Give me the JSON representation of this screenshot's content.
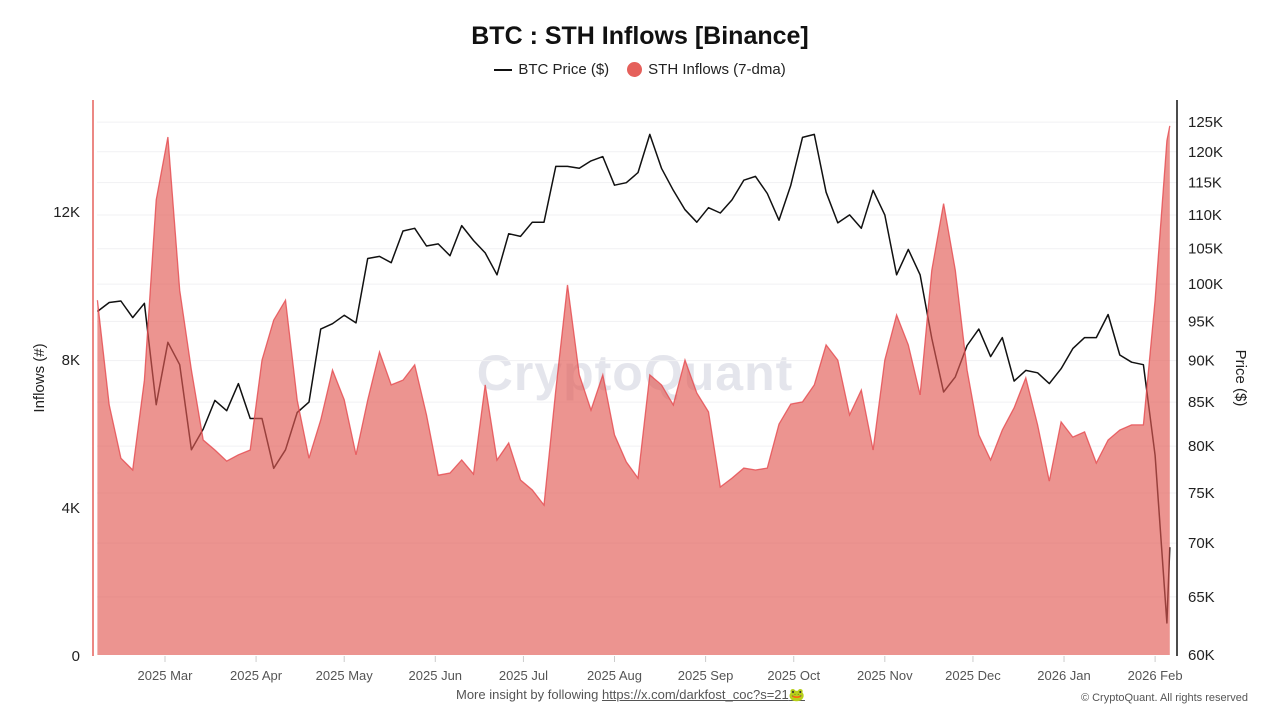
{
  "chart_data": {
    "type": "area+line",
    "title": "BTC : STH Inflows [Binance]",
    "legend": [
      {
        "name": "BTC Price ($)",
        "marker": "line",
        "color": "#111111"
      },
      {
        "name": "STH Inflows (7-dma)",
        "marker": "dot",
        "color": "#e5605b"
      }
    ],
    "legend_placement": "top-center",
    "ylabel_left": "Inflows (#)",
    "ylabel_right": "Price ($)",
    "y_left_ticks": [
      "0",
      "4K",
      "8K",
      "12K"
    ],
    "y_left_tick_values": [
      0,
      4000,
      8000,
      12000
    ],
    "y_left_range": [
      0,
      15000
    ],
    "y_right_ticks": [
      "60K",
      "65K",
      "70K",
      "75K",
      "80K",
      "85K",
      "90K",
      "95K",
      "100K",
      "105K",
      "110K",
      "115K",
      "120K",
      "125K"
    ],
    "y_right_tick_values": [
      60000,
      65000,
      70000,
      75000,
      80000,
      85000,
      90000,
      95000,
      100000,
      105000,
      110000,
      115000,
      120000,
      125000
    ],
    "y_right_range": [
      60000,
      130000
    ],
    "y_right_scale": "log",
    "x_ticks": [
      "2025 Mar",
      "2025 Apr",
      "2025 May",
      "2025 Jun",
      "2025 Jul",
      "2025 Aug",
      "2025 Sep",
      "2025 Oct",
      "2025 Nov",
      "2025 Dec",
      "2026 Jan",
      "2026 Feb"
    ],
    "x_tick_dates": [
      "2025-03-01",
      "2025-04-01",
      "2025-05-01",
      "2025-06-01",
      "2025-07-01",
      "2025-08-01",
      "2025-09-01",
      "2025-10-01",
      "2025-11-01",
      "2025-12-01",
      "2026-01-01",
      "2026-02-01"
    ],
    "grid": true,
    "colors": {
      "inflow_fill": "#e25b55",
      "inflow_line": "#e5484d",
      "price_line": "#111111"
    },
    "dates": [
      "2025-02-06",
      "2025-02-10",
      "2025-02-14",
      "2025-02-18",
      "2025-02-22",
      "2025-02-26",
      "2025-03-02",
      "2025-03-06",
      "2025-03-10",
      "2025-03-14",
      "2025-03-18",
      "2025-03-22",
      "2025-03-26",
      "2025-03-30",
      "2025-04-03",
      "2025-04-07",
      "2025-04-11",
      "2025-04-15",
      "2025-04-19",
      "2025-04-23",
      "2025-04-27",
      "2025-05-01",
      "2025-05-05",
      "2025-05-09",
      "2025-05-13",
      "2025-05-17",
      "2025-05-21",
      "2025-05-25",
      "2025-05-29",
      "2025-06-02",
      "2025-06-06",
      "2025-06-10",
      "2025-06-14",
      "2025-06-18",
      "2025-06-22",
      "2025-06-26",
      "2025-06-30",
      "2025-07-04",
      "2025-07-08",
      "2025-07-12",
      "2025-07-16",
      "2025-07-20",
      "2025-07-24",
      "2025-07-28",
      "2025-08-01",
      "2025-08-05",
      "2025-08-09",
      "2025-08-13",
      "2025-08-17",
      "2025-08-21",
      "2025-08-25",
      "2025-08-29",
      "2025-09-02",
      "2025-09-06",
      "2025-09-10",
      "2025-09-14",
      "2025-09-18",
      "2025-09-22",
      "2025-09-26",
      "2025-09-30",
      "2025-10-04",
      "2025-10-08",
      "2025-10-12",
      "2025-10-16",
      "2025-10-20",
      "2025-10-24",
      "2025-10-28",
      "2025-11-01",
      "2025-11-05",
      "2025-11-09",
      "2025-11-13",
      "2025-11-17",
      "2025-11-21",
      "2025-11-25",
      "2025-11-29",
      "2025-12-03",
      "2025-12-07",
      "2025-12-11",
      "2025-12-15",
      "2025-12-19",
      "2025-12-23",
      "2025-12-27",
      "2025-12-31",
      "2026-01-04",
      "2026-01-08",
      "2026-01-12",
      "2026-01-16",
      "2026-01-20",
      "2026-01-24",
      "2026-01-28",
      "2026-02-01",
      "2026-02-05",
      "2026-02-06"
    ],
    "series": [
      {
        "name": "STH Inflows (7-dma)",
        "type": "area",
        "axis": "left",
        "values": [
          9590,
          6760,
          5320,
          5000,
          7430,
          12300,
          14000,
          9860,
          7700,
          5810,
          5540,
          5240,
          5410,
          5540,
          7970,
          9050,
          9590,
          6890,
          5320,
          6350,
          7700,
          6900,
          5410,
          6890,
          8190,
          7300,
          7430,
          7840,
          6490,
          4860,
          4920,
          5270,
          4890,
          7300,
          5270,
          5730,
          4730,
          4460,
          4050,
          7160,
          10000,
          7570,
          6620,
          7570,
          5950,
          5220,
          4780,
          7570,
          7300,
          6760,
          7970,
          7080,
          6570,
          4540,
          4780,
          5050,
          5000,
          5050,
          6240,
          6780,
          6840,
          7300,
          8380,
          7970,
          6490,
          7160,
          5540,
          7970,
          9190,
          8380,
          7030,
          10400,
          12200,
          10400,
          7700,
          5950,
          5270,
          6080,
          6680,
          7490,
          6220,
          4700,
          6300,
          5890,
          6030,
          5190,
          5810,
          6080,
          6220,
          6220,
          9590,
          13900,
          14300
        ]
      },
      {
        "name": "BTC Price ($)",
        "type": "line",
        "axis": "right",
        "values": [
          96300,
          97500,
          97700,
          95500,
          97400,
          84700,
          92300,
          89500,
          79600,
          81900,
          85200,
          84000,
          87200,
          83100,
          83100,
          77600,
          79600,
          83800,
          85000,
          94000,
          94700,
          95800,
          94800,
          103600,
          103900,
          103000,
          107600,
          108000,
          105400,
          105700,
          104000,
          108400,
          106200,
          104400,
          101300,
          107200,
          106800,
          108900,
          108900,
          117600,
          117600,
          117300,
          118500,
          119200,
          114600,
          115000,
          116600,
          122900,
          117300,
          113800,
          110800,
          108900,
          111100,
          110300,
          112300,
          115400,
          116000,
          113300,
          109200,
          114600,
          122400,
          122900,
          113500,
          108800,
          110000,
          108000,
          113800,
          110000,
          101300,
          104900,
          101300,
          92800,
          86200,
          88000,
          91900,
          94000,
          90500,
          92900,
          87500,
          88800,
          88500,
          87200,
          89000,
          91500,
          92900,
          92900,
          95900,
          90700,
          89800,
          89500,
          79000,
          62700,
          69600
        ]
      }
    ]
  },
  "watermark": "CryptoQuant",
  "footer": {
    "text": "More insight by following ",
    "link": "https://x.com/darkfost_coc?s=21",
    "emoji": "🐸",
    "copyright": "© CryptoQuant. All rights reserved"
  }
}
